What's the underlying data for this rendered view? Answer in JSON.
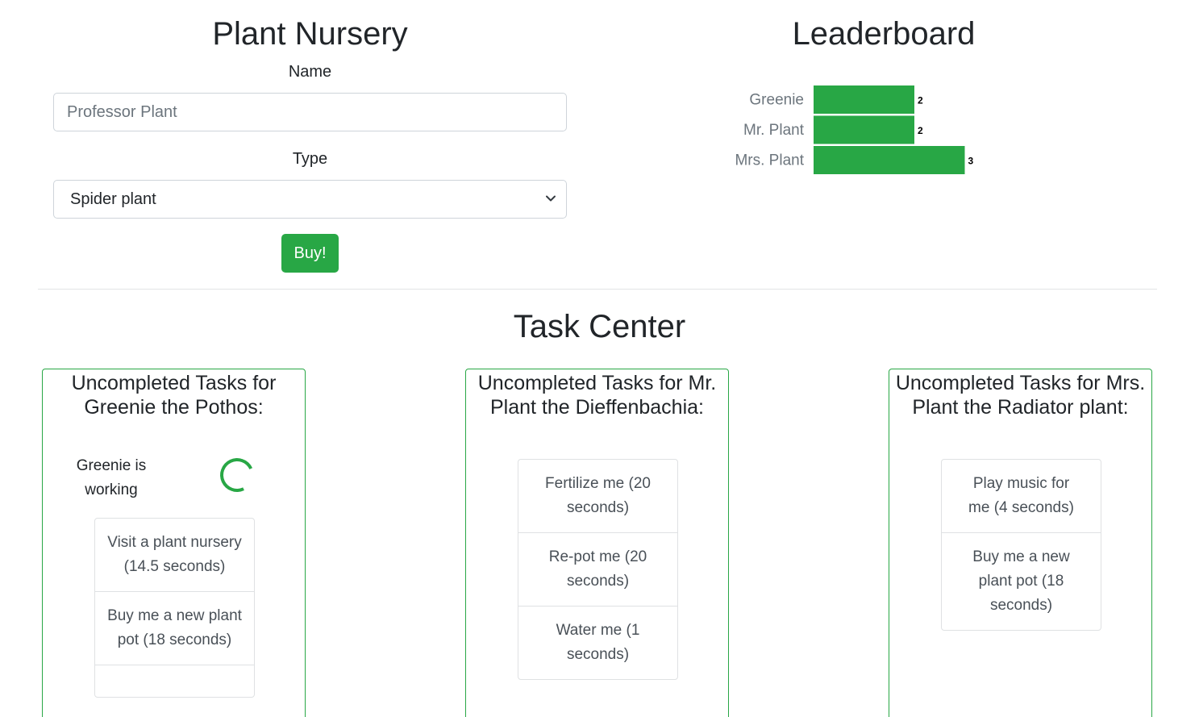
{
  "nursery": {
    "title": "Plant Nursery",
    "name_label": "Name",
    "name_placeholder": "Professor Plant",
    "type_label": "Type",
    "type_selected": "Spider plant",
    "buy_label": "Buy!"
  },
  "leaderboard": {
    "title": "Leaderboard"
  },
  "chart_data": {
    "type": "bar",
    "orientation": "horizontal",
    "categories": [
      "Greenie",
      "Mr. Plant",
      "Mrs. Plant"
    ],
    "values": [
      2,
      2,
      3
    ],
    "color": "#28a745",
    "title": "Leaderboard",
    "xlabel": "",
    "ylabel": "",
    "xlim": [
      0,
      3
    ]
  },
  "task_center": {
    "title": "Task Center",
    "cards": [
      {
        "heading": "Uncompleted Tasks for Greenie the Pothos:",
        "status": "Greenie is working",
        "tasks": [
          "Visit a plant nursery (14.5 seconds)",
          "Buy me a new plant pot (18 seconds)"
        ]
      },
      {
        "heading": "Uncompleted Tasks for Mr. Plant the Dieffenbachia:",
        "tasks": [
          "Fertilize me (20 seconds)",
          "Re-pot me (20 seconds)",
          "Water me (1 seconds)"
        ]
      },
      {
        "heading": "Uncompleted Tasks for Mrs. Plant the Radiator plant:",
        "tasks": [
          "Play music for me (4 seconds)",
          "Buy me a new plant pot (18 seconds)"
        ]
      }
    ]
  },
  "colors": {
    "accent": "#28a745",
    "border": "#ced4da"
  }
}
